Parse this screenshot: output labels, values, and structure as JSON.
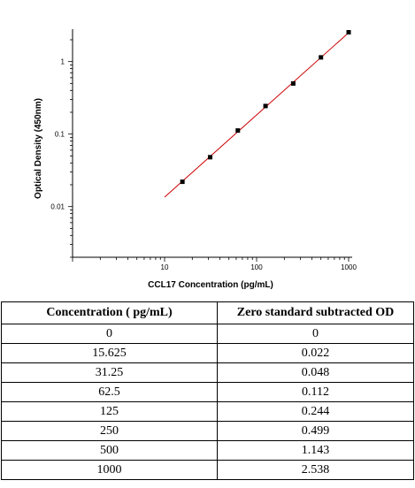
{
  "chart_data": {
    "type": "scatter",
    "title": "",
    "xlabel": "CCL17 Concentration (pg/mL)",
    "ylabel": "Optical Density (450nm)",
    "x_scale": "log",
    "y_scale": "log",
    "xlim": [
      1,
      1000
    ],
    "ylim": [
      0.002,
      2.8
    ],
    "x_ticks": [
      "10",
      "100",
      "1000"
    ],
    "y_ticks": [
      "0.01",
      "0.1",
      "1"
    ],
    "grid": false,
    "legend": "none",
    "points": [
      {
        "x": 15.625,
        "y": 0.022
      },
      {
        "x": 31.25,
        "y": 0.048
      },
      {
        "x": 62.5,
        "y": 0.112
      },
      {
        "x": 125,
        "y": 0.244
      },
      {
        "x": 250,
        "y": 0.499
      },
      {
        "x": 500,
        "y": 1.143
      },
      {
        "x": 1000,
        "y": 2.538
      }
    ],
    "fit_line": {
      "x_start": 10,
      "y_start": 0.0135,
      "x_end": 1000,
      "y_end": 2.5
    },
    "marker_color": "#000000",
    "line_color": "#cc0000"
  },
  "table": {
    "headers": [
      "Concentration ( pg/mL)",
      "Zero standard subtracted OD"
    ],
    "rows": [
      [
        "0",
        "0"
      ],
      [
        "15.625",
        "0.022"
      ],
      [
        "31.25",
        "0.048"
      ],
      [
        "62.5",
        "0.112"
      ],
      [
        "125",
        "0.244"
      ],
      [
        "250",
        "0.499"
      ],
      [
        "500",
        "1.143"
      ],
      [
        "1000",
        "2.538"
      ]
    ]
  }
}
